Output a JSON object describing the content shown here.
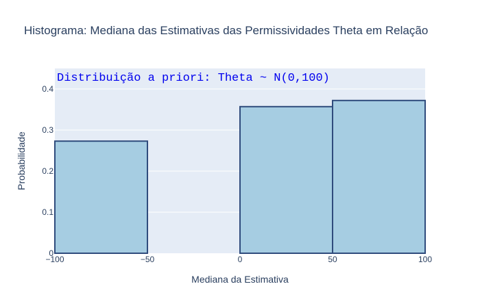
{
  "chart_data": {
    "type": "bar",
    "title": "Histograma: Mediana das Estimativas das Permissividades Theta em Relação",
    "xlabel": "Mediana da Estimativa",
    "ylabel": "Probabilidade",
    "xlim": [
      -100,
      100
    ],
    "ylim": [
      0,
      0.45
    ],
    "x_ticks": [
      "−100",
      "−50",
      "0",
      "50",
      "100"
    ],
    "x_tick_values": [
      -100,
      -50,
      0,
      50,
      100
    ],
    "y_ticks": [
      "0",
      "0.1",
      "0.2",
      "0.3",
      "0.4"
    ],
    "y_tick_values": [
      0,
      0.1,
      0.2,
      0.3,
      0.4
    ],
    "grid": true,
    "bins": [
      {
        "start": -100,
        "end": -50,
        "value": 0.273
      },
      {
        "start": -50,
        "end": 0,
        "value": 0
      },
      {
        "start": 0,
        "end": 50,
        "value": 0.357
      },
      {
        "start": 50,
        "end": 100,
        "value": 0.372
      }
    ],
    "annotation": "Distribuição a priori: Theta ~ N(0,100)",
    "colors": {
      "bar_fill": "#a6cde2",
      "bar_line": "#2f4b7c",
      "plot_bg": "#e5ecf6",
      "grid": "#ffffff",
      "annotation": "#0000ee"
    }
  }
}
